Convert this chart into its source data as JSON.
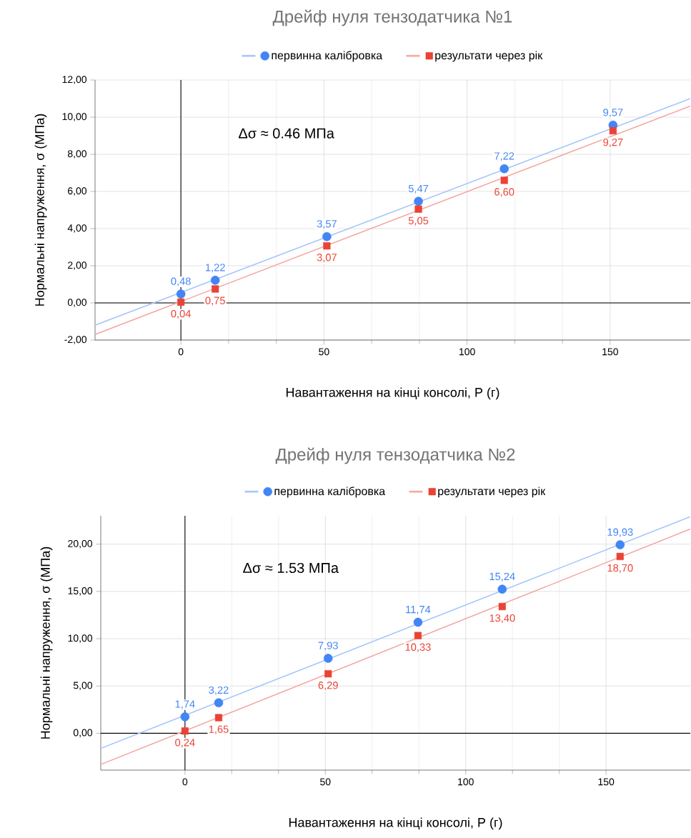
{
  "chart_data": [
    {
      "type": "scatter",
      "title": "Дрейф нуля тензодатчика №1",
      "xlabel": "Навантаження на кінці консолі, P (г)",
      "ylabel": "Нормальні напруження, σ (МПа)",
      "annotations": [
        "Δσ ≈ 0.46 МПа"
      ],
      "x": [
        0,
        12,
        51,
        83,
        113,
        151
      ],
      "series": [
        {
          "name": "первинна калібровка",
          "color": "#4285f4",
          "marker": "circle",
          "values": [
            0.48,
            1.22,
            3.57,
            5.47,
            7.22,
            9.57
          ],
          "value_labels": [
            "0,48",
            "1,22",
            "3,57",
            "5,47",
            "7,22",
            "9,57"
          ]
        },
        {
          "name": "результати через рік",
          "color": "#ea4335",
          "marker": "square",
          "values": [
            0.04,
            0.75,
            3.07,
            5.05,
            6.6,
            9.27
          ],
          "value_labels": [
            "0,04",
            "0,75",
            "3,07",
            "5,05",
            "6,60",
            "9,27"
          ]
        },
        {
          "type": "line",
          "color": "#a8c7fa",
          "x": [
            -30,
            178
          ],
          "values": [
            -1.2,
            11.0
          ]
        },
        {
          "type": "line",
          "color": "#f4aaa4",
          "x": [
            -30,
            178
          ],
          "values": [
            -1.7,
            10.6
          ]
        }
      ],
      "xlim": [
        -30,
        178
      ],
      "ylim": [
        -2,
        12
      ],
      "xticks": [
        0,
        50,
        100,
        150
      ],
      "yticks": [
        {
          "value": -2,
          "label": "-2,00"
        },
        {
          "value": 0,
          "label": "0,00"
        },
        {
          "value": 2,
          "label": "2,00"
        },
        {
          "value": 4,
          "label": "4,00"
        },
        {
          "value": 6,
          "label": "6,00"
        },
        {
          "value": 8,
          "label": "8,00"
        },
        {
          "value": 10,
          "label": "10,00"
        },
        {
          "value": 12,
          "label": "12,00"
        }
      ],
      "grid": true,
      "legend": "top"
    },
    {
      "type": "scatter",
      "title": "Дрейф нуля тензодатчика №2",
      "xlabel": "Навантаження на кінці консолі, P (г)",
      "ylabel": "Нормальні напруження, σ (МПа)",
      "annotations": [
        "Δσ ≈ 1.53 МПа"
      ],
      "x": [
        0,
        12,
        51,
        83,
        113,
        155
      ],
      "series": [
        {
          "name": "первинна калібровка",
          "color": "#4285f4",
          "marker": "circle",
          "values": [
            1.74,
            3.22,
            7.93,
            11.74,
            15.24,
            19.93
          ],
          "value_labels": [
            "1,74",
            "3,22",
            "7,93",
            "11,74",
            "15,24",
            "19,93"
          ]
        },
        {
          "name": "результати через рік",
          "color": "#ea4335",
          "marker": "square",
          "values": [
            0.24,
            1.65,
            6.29,
            10.33,
            13.4,
            18.7
          ],
          "value_labels": [
            "0,24",
            "1,65",
            "6,29",
            "10,33",
            "13,40",
            "18,70"
          ]
        },
        {
          "type": "line",
          "color": "#a8c7fa",
          "x": [
            -30,
            180
          ],
          "values": [
            -1.6,
            22.9
          ]
        },
        {
          "type": "line",
          "color": "#f4aaa4",
          "x": [
            -30,
            180
          ],
          "values": [
            -3.3,
            21.6
          ]
        }
      ],
      "xlim": [
        -30,
        180
      ],
      "ylim": [
        -3.9,
        23
      ],
      "xticks": [
        0,
        50,
        100,
        150
      ],
      "yticks": [
        {
          "value": 0,
          "label": "0,00"
        },
        {
          "value": 5,
          "label": "5,00"
        },
        {
          "value": 10,
          "label": "10,00"
        },
        {
          "value": 15,
          "label": "15,00"
        },
        {
          "value": 20,
          "label": "20,00"
        }
      ],
      "grid": true,
      "legend": "top"
    }
  ]
}
